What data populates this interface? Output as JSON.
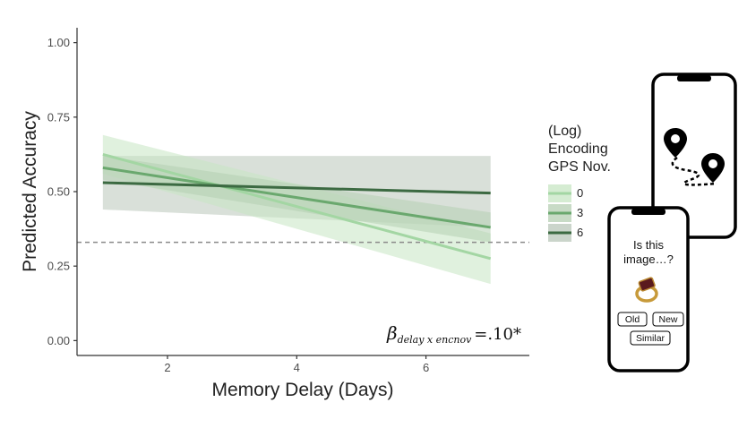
{
  "chart_data": {
    "type": "line",
    "title": "",
    "xlabel": "Memory Delay (Days)",
    "ylabel": "Predicted Accuracy",
    "xlim": [
      0.6,
      7.6
    ],
    "ylim": [
      -0.05,
      1.05
    ],
    "xticks": [
      2,
      4,
      6
    ],
    "xtick_labels": [
      "2",
      "4",
      "6"
    ],
    "yticks": [
      0,
      0.25,
      0.5,
      0.75,
      1.0
    ],
    "ytick_labels": [
      "0.00",
      "0.25",
      "0.50",
      "0.75",
      "1.00"
    ],
    "grid": false,
    "chance_line": 0.33,
    "legend": {
      "title_lines": [
        "(Log)",
        "Encoding",
        "GPS Nov."
      ],
      "position": "right"
    },
    "series": [
      {
        "name": "0",
        "color": "#a3d6a3",
        "band_color": "#c7e6c3",
        "x": [
          1,
          7
        ],
        "y": [
          0.625,
          0.275
        ],
        "lower": [
          0.56,
          0.19
        ],
        "upper": [
          0.69,
          0.36
        ]
      },
      {
        "name": "3",
        "color": "#6aa86e",
        "band_color": "#b5cfb3",
        "x": [
          1,
          7
        ],
        "y": [
          0.58,
          0.38
        ],
        "lower": [
          0.54,
          0.33
        ],
        "upper": [
          0.62,
          0.43
        ]
      },
      {
        "name": "6",
        "color": "#3c6a42",
        "band_color": "#b9c7b9",
        "x": [
          1,
          7
        ],
        "y": [
          0.53,
          0.495
        ],
        "lower": [
          0.44,
          0.38
        ],
        "upper": [
          0.62,
          0.62
        ]
      }
    ],
    "annotation": {
      "beta": "β",
      "subscript": "delay x encnov",
      "value": "=.10*"
    }
  },
  "phone_top": {
    "icons": [
      "map-pin-icon",
      "map-pin-icon"
    ]
  },
  "phone_bottom": {
    "question_line1": "Is this",
    "question_line2": "image…?",
    "icons": [
      "ring-icon"
    ],
    "buttons": {
      "old": "Old",
      "new": "New",
      "similar": "Similar"
    }
  }
}
